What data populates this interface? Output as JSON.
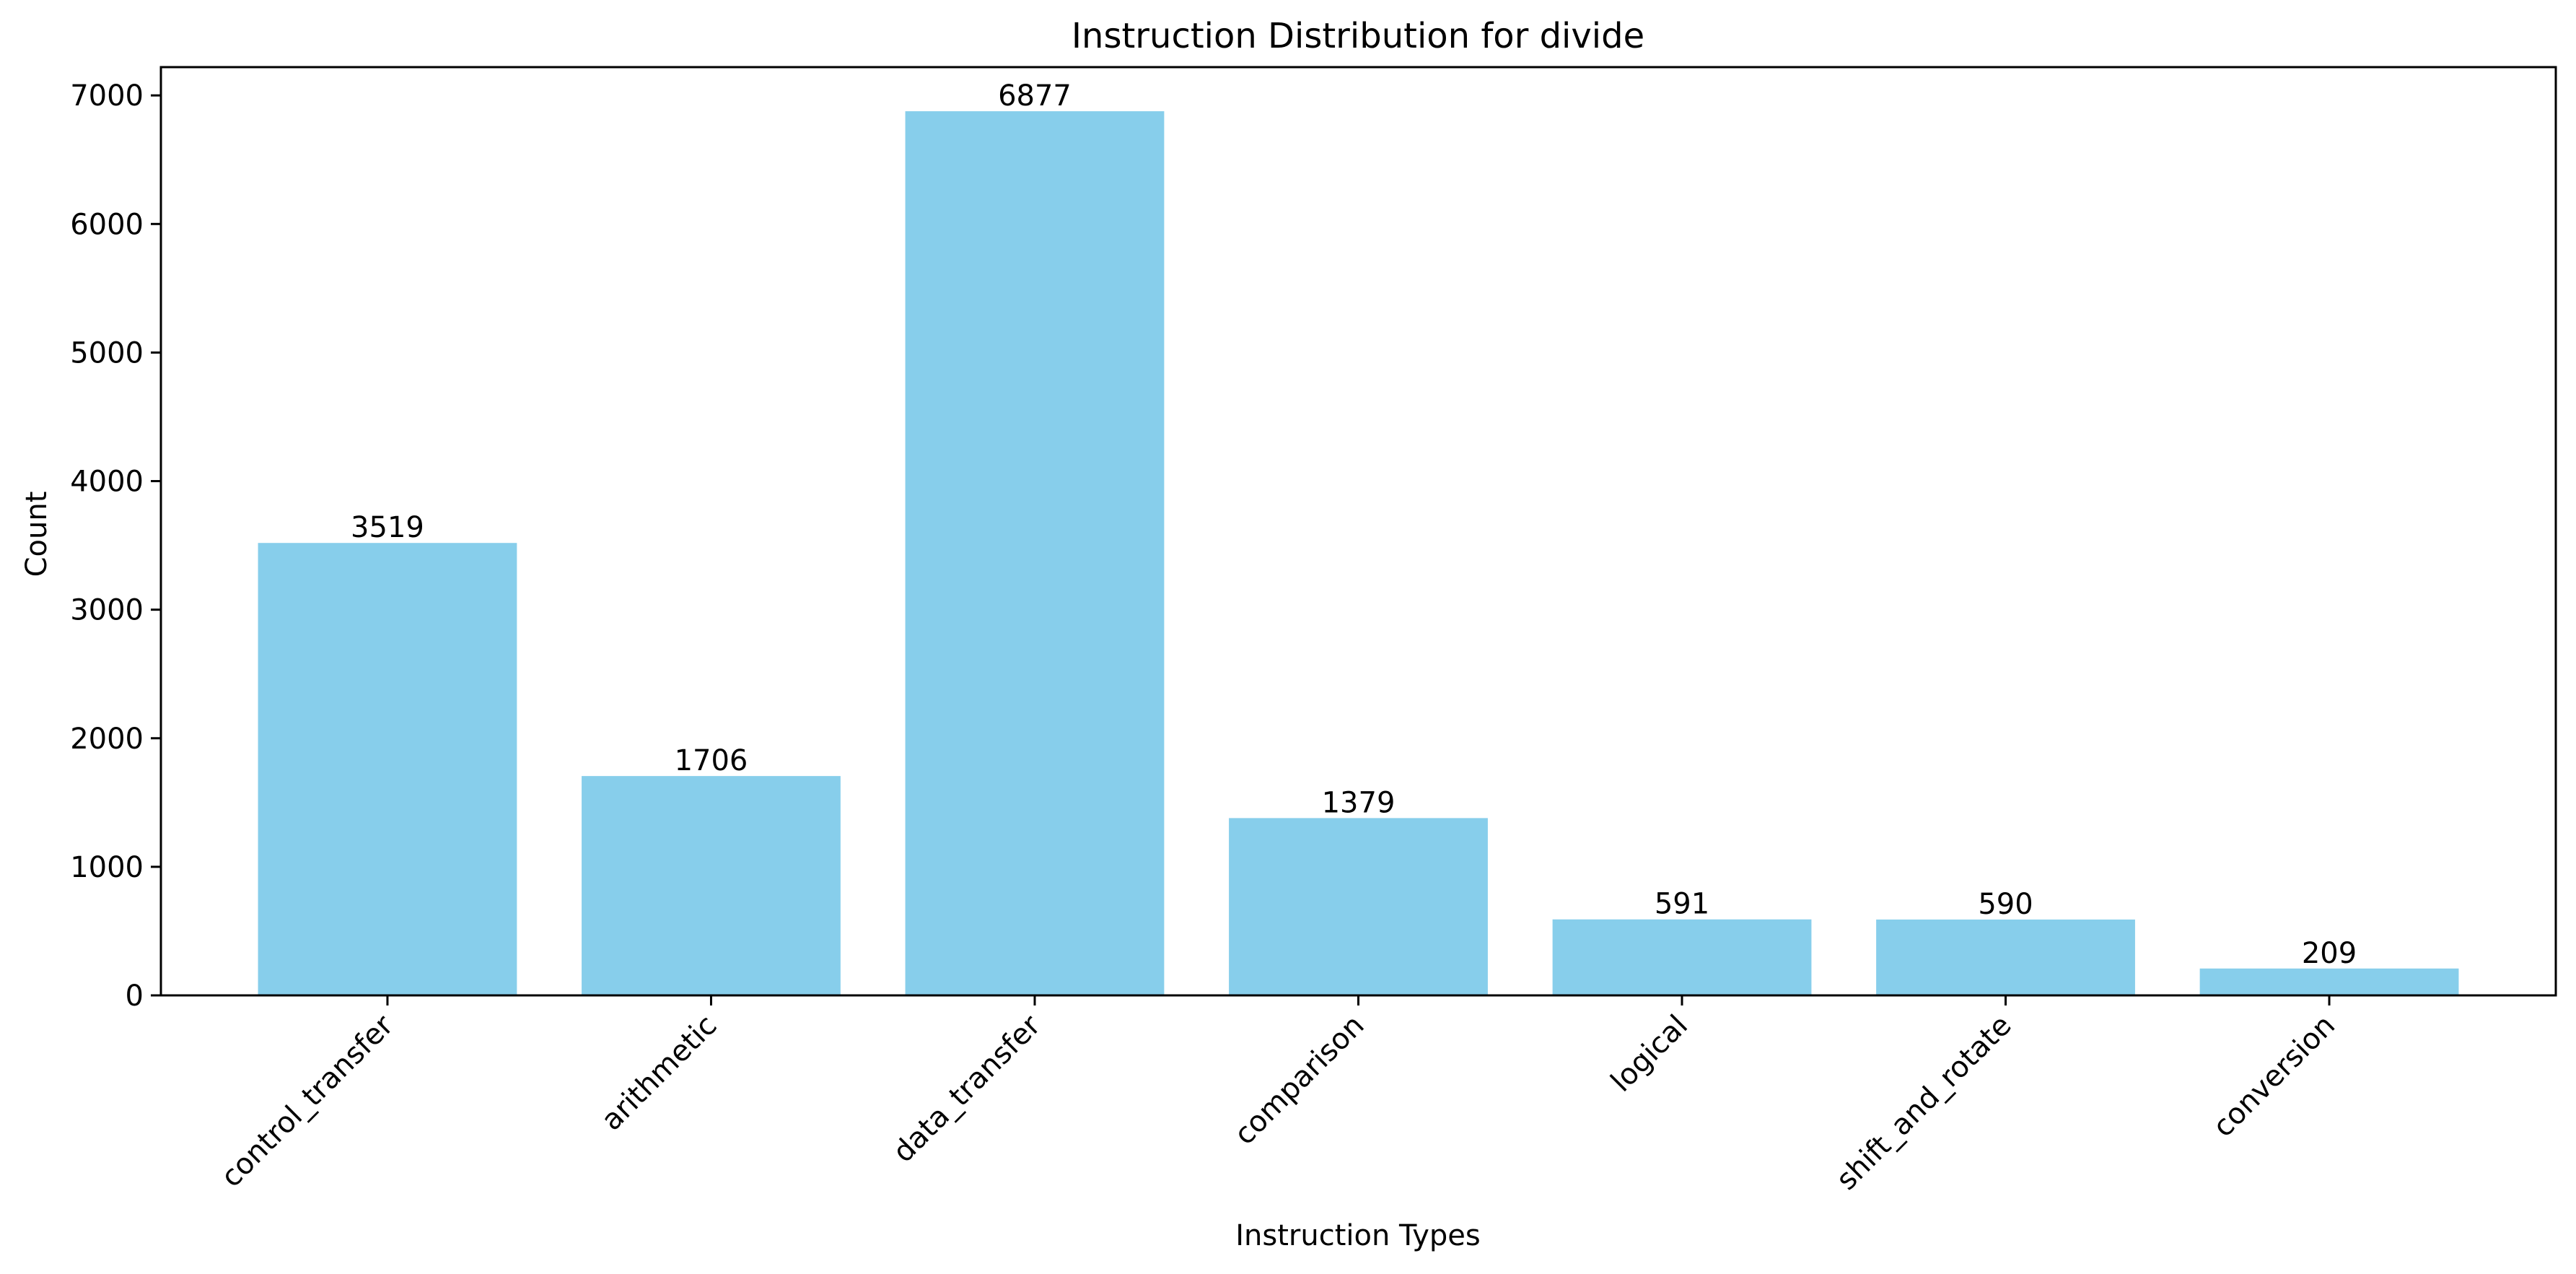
{
  "chart_data": {
    "type": "bar",
    "title": "Instruction Distribution for divide",
    "xlabel": "Instruction Types",
    "ylabel": "Count",
    "categories": [
      "control_transfer",
      "arithmetic",
      "data_transfer",
      "comparison",
      "logical",
      "shift_and_rotate",
      "conversion"
    ],
    "values": [
      3519,
      1706,
      6877,
      1379,
      591,
      590,
      209
    ],
    "ylim": [
      0,
      7220
    ],
    "yticks": [
      0,
      1000,
      2000,
      3000,
      4000,
      5000,
      6000,
      7000
    ],
    "bar_color": "#87CEEB",
    "grid": false,
    "legend": false
  }
}
